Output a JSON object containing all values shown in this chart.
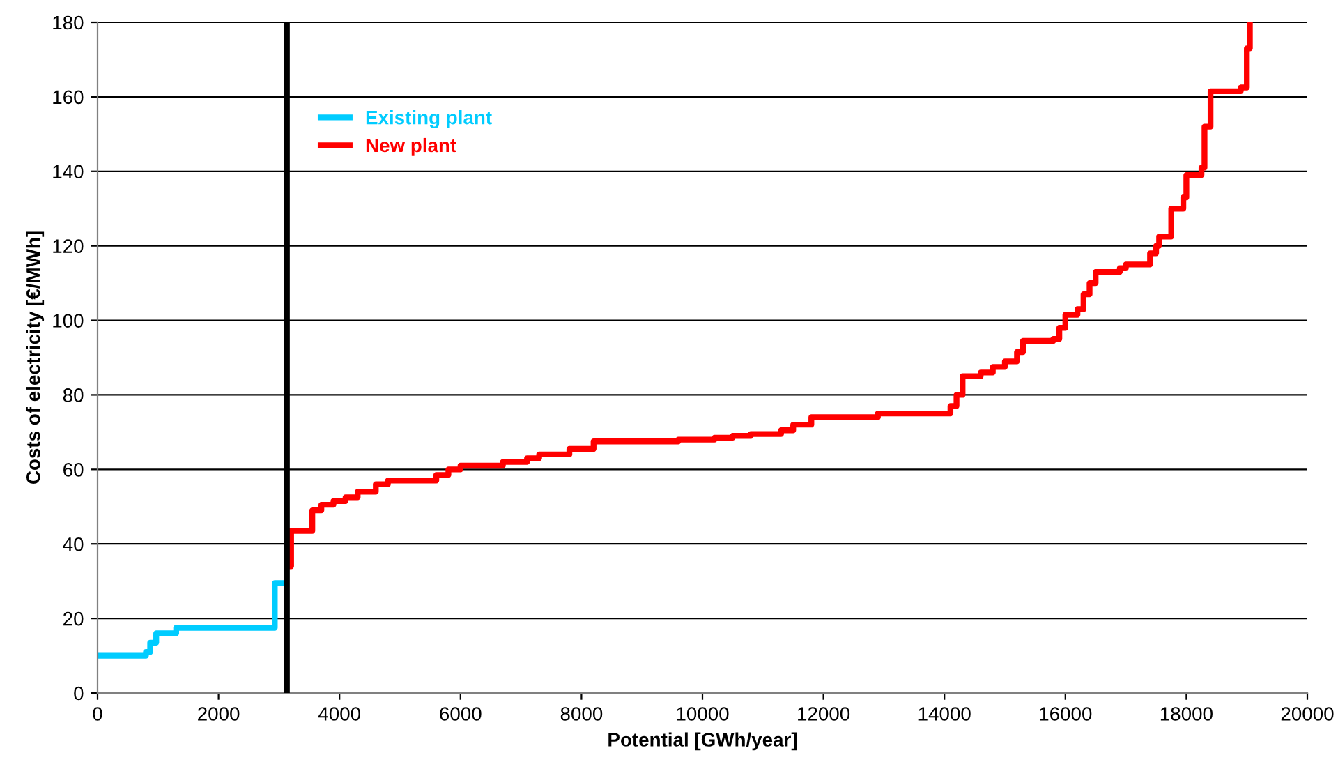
{
  "chart_data": {
    "type": "step",
    "xlabel": "Potential [GWh/year]",
    "ylabel": "Costs of electricity [€/MWh]",
    "xlim": [
      0,
      20000
    ],
    "ylim": [
      0,
      180
    ],
    "xticks": [
      0,
      2000,
      4000,
      6000,
      8000,
      10000,
      12000,
      14000,
      16000,
      18000,
      20000
    ],
    "yticks": [
      0,
      20,
      40,
      60,
      80,
      100,
      120,
      140,
      160,
      180
    ],
    "grid": "y",
    "legend": "top left",
    "ref_lines": [
      {
        "axis": "x",
        "value": 3130,
        "label": null,
        "color": "#000000"
      }
    ],
    "series": [
      {
        "name": "Existing plant",
        "color": "#00ccff",
        "x": [
          0,
          800,
          870,
          970,
          1300,
          2930,
          3110
        ],
        "values": [
          10,
          11,
          13.5,
          16,
          17.5,
          29.5,
          29.5
        ]
      },
      {
        "name": "New plant",
        "color": "#ff0000",
        "x": [
          3130,
          3200,
          3550,
          3700,
          3900,
          4100,
          4300,
          4600,
          4800,
          5600,
          5800,
          6000,
          6700,
          7100,
          7300,
          7800,
          8200,
          9600,
          10200,
          10500,
          10800,
          11300,
          11500,
          11800,
          12900,
          14100,
          14200,
          14300,
          14600,
          14800,
          15000,
          15200,
          15300,
          15800,
          15900,
          16000,
          16200,
          16300,
          16400,
          16500,
          16900,
          17000,
          17400,
          17500,
          17550,
          17750,
          17950,
          18000,
          18250,
          18300,
          18400,
          18900,
          19000,
          19050
        ],
        "values": [
          34,
          43.5,
          49,
          50.5,
          51.5,
          52.5,
          54,
          56,
          57,
          58.5,
          60,
          61,
          62,
          63,
          64,
          65.5,
          67.5,
          68,
          68.5,
          69,
          69.5,
          70.5,
          72,
          74,
          75,
          77,
          80,
          85,
          86,
          87.5,
          89,
          91.5,
          94.5,
          95,
          98,
          101.5,
          103,
          107,
          110,
          113,
          114,
          115,
          118,
          120,
          122.5,
          130,
          133,
          139,
          141,
          152,
          161.5,
          162.5,
          173,
          180
        ]
      }
    ]
  }
}
